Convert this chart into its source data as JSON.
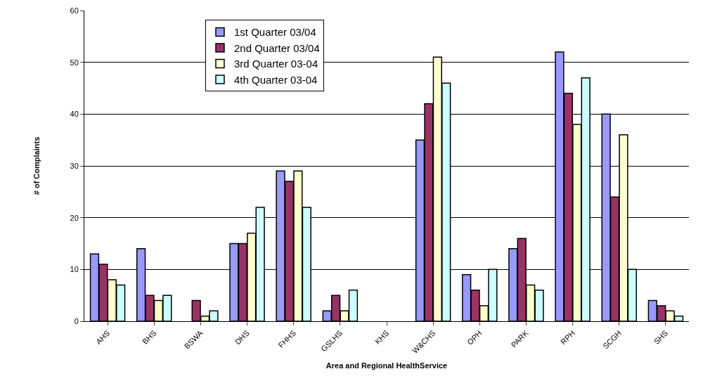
{
  "chart_data": {
    "type": "bar",
    "xlabel": "Area and Regional HealthService",
    "ylabel": "# of Complaints",
    "categories": [
      "AHS",
      "BHS",
      "BSWA",
      "DHS",
      "FHHS",
      "GSLHS",
      "KHS",
      "W&CHS",
      "OPH",
      "PARK",
      "RPH",
      "SCGH",
      "SHS"
    ],
    "series": [
      {
        "name": "1st Quarter 03/04",
        "color": "#9999ff",
        "values": [
          13,
          14,
          0,
          15,
          29,
          2,
          0,
          35,
          9,
          14,
          52,
          40,
          4
        ]
      },
      {
        "name": "2nd Quarter 03/04",
        "color": "#993366",
        "values": [
          11,
          5,
          4,
          15,
          27,
          5,
          0,
          42,
          6,
          16,
          44,
          24,
          3
        ]
      },
      {
        "name": "3rd Quarter 03-04",
        "color": "#ffffcc",
        "values": [
          8,
          4,
          1,
          17,
          29,
          2,
          0,
          51,
          3,
          7,
          38,
          36,
          2
        ]
      },
      {
        "name": "4th Quarter 03-04",
        "color": "#ccffff",
        "values": [
          7,
          5,
          2,
          22,
          22,
          6,
          0,
          46,
          10,
          6,
          47,
          10,
          1
        ]
      }
    ],
    "ylim": [
      0,
      60
    ],
    "yticks": [
      0,
      10,
      20,
      30,
      40,
      50,
      60
    ],
    "grid": "y",
    "legend": "top left"
  }
}
